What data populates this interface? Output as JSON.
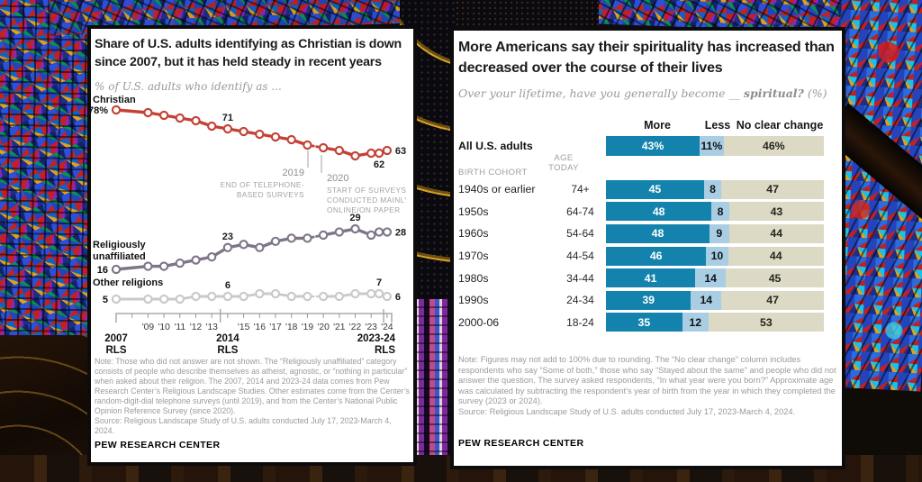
{
  "background": {
    "description": "stained glass cathedral interior photo",
    "accent_colors": {
      "glass_blue": "#2d50d8",
      "glass_red": "#c32026",
      "glass_gold": "#e0a01c",
      "wood_dark": "#1a0f07"
    }
  },
  "chart_data": [
    {
      "type": "line",
      "title": "Share of U.S. adults identifying as Christian is down since 2007, but it has held steady in recent years",
      "subtitle": "% of U.S. adults who identify as ...",
      "x": [
        2007,
        2009,
        2010,
        2011,
        2012,
        2013,
        2014,
        2015,
        2016,
        2017,
        2018,
        2019,
        2020,
        2021,
        2022,
        2023,
        2023.5,
        2024
      ],
      "dashed_between": [
        2019,
        2020
      ],
      "series": [
        {
          "id": "christian",
          "name": "Christian",
          "name_lines": [
            "Christian"
          ],
          "color": "#c44134",
          "values": [
            78,
            77,
            76,
            75,
            74,
            72,
            71,
            70,
            69,
            68,
            67,
            65,
            64,
            63,
            61,
            62,
            62,
            63
          ],
          "start_label": "78%"
        },
        {
          "id": "unaffiliated",
          "name": "Religiously unaffiliated",
          "name_lines": [
            "Religiously",
            "unaffiliated"
          ],
          "color": "#7e7588",
          "values": [
            16,
            17,
            17,
            18,
            19,
            20,
            23,
            24,
            23,
            25,
            26,
            26,
            27,
            28,
            29,
            27,
            28,
            28
          ],
          "start_label": "16"
        },
        {
          "id": "other",
          "name": "Other religions",
          "name_lines": [
            "Other religions"
          ],
          "color": "#c9c9c9",
          "values": [
            5,
            5,
            5,
            5,
            6,
            6,
            6,
            6,
            7,
            7,
            6,
            6,
            6,
            6,
            7,
            7,
            7,
            6
          ],
          "start_label": "5"
        }
      ],
      "point_labels": [
        {
          "series": "christian",
          "x": 2014,
          "text": "71",
          "pos": "above"
        },
        {
          "series": "christian",
          "x": 2023.5,
          "text": "62",
          "pos": "below"
        },
        {
          "series": "christian",
          "x": 2024,
          "text": "63",
          "pos": "right"
        },
        {
          "series": "unaffiliated",
          "x": 2014,
          "text": "23",
          "pos": "above"
        },
        {
          "series": "unaffiliated",
          "x": 2022,
          "text": "29",
          "pos": "above"
        },
        {
          "series": "unaffiliated",
          "x": 2024,
          "text": "28",
          "pos": "right"
        },
        {
          "series": "other",
          "x": 2014,
          "text": "6",
          "pos": "above"
        },
        {
          "series": "other",
          "x": 2023.5,
          "text": "7",
          "pos": "above"
        },
        {
          "series": "other",
          "x": 2024,
          "text": "6",
          "pos": "right"
        }
      ],
      "annotations": [
        {
          "id": "a2019",
          "year": "2019",
          "lines": [
            "END OF TELEPHONE-",
            "BASED SURVEYS"
          ]
        },
        {
          "id": "a2020",
          "year": "2020",
          "lines": [
            "START OF SURVEYS",
            "CONDUCTED MAINLY",
            "ONLINE/ON PAPER"
          ]
        }
      ],
      "x_ticks": [
        {
          "year": 2009,
          "label": "'09"
        },
        {
          "year": 2010,
          "label": "'10"
        },
        {
          "year": 2011,
          "label": "'11"
        },
        {
          "year": 2012,
          "label": "'12"
        },
        {
          "year": 2013,
          "label": "'13"
        },
        {
          "year": 2015,
          "label": "'15"
        },
        {
          "year": 2016,
          "label": "'16"
        },
        {
          "year": 2017,
          "label": "'17"
        },
        {
          "year": 2018,
          "label": "'18"
        },
        {
          "year": 2019,
          "label": "'19"
        },
        {
          "year": 2020,
          "label": "'20"
        },
        {
          "year": 2021,
          "label": "'21"
        },
        {
          "year": 2022,
          "label": "'22"
        },
        {
          "year": 2023,
          "label": "'23"
        },
        {
          "year": 2024,
          "label": "'24"
        }
      ],
      "x_markers": [
        {
          "year": 2007,
          "label": "2007",
          "sub": "RLS",
          "align": "middle"
        },
        {
          "year": 2014,
          "label": "2014",
          "sub": "RLS",
          "align": "middle"
        },
        {
          "year": 2023.7,
          "label": "2023-24",
          "sub": "RLS",
          "align": "end"
        }
      ],
      "note": "Note: Those who did not answer are not shown. The “Religiously unaffiliated” category consists of people who describe themselves as atheist, agnostic, or “nothing in particular” when asked about their religion. The 2007, 2014 and 2023-24 data comes from Pew Research Center’s Religious Landscape Studies. Other estimates come from the Center’s random-digit-dial telephone surveys (until 2019), and from the Center’s National Public Opinion Reference Survey (since 2020).",
      "source": "Source: Religious Landscape Study of U.S. adults conducted July 17, 2023-March 4, 2024.",
      "branding": "PEW RESEARCH CENTER"
    },
    {
      "type": "stacked-bar",
      "title": "More Americans say their spirituality has increased than decreased over the course of their lives",
      "subtitle_prefix": "Over your lifetime, have you generally become __ ",
      "subtitle_emphasis": "spiritual?",
      "subtitle_suffix": " (%)",
      "legend": [
        "More",
        "Less",
        "No clear change"
      ],
      "colors": {
        "more": "#1383ad",
        "less": "#a9cee3",
        "no_clear_change": "#dcd9c5"
      },
      "col_headers": {
        "cohort": "BIRTH COHORT",
        "age": "AGE TODAY"
      },
      "total_row": {
        "label": "All U.S. adults",
        "values": [
          43,
          11,
          46
        ],
        "display": [
          "43%",
          "11%",
          "46%"
        ]
      },
      "rows": [
        {
          "label": "1940s or earlier",
          "age": "74+",
          "values": [
            45,
            8,
            47
          ],
          "display": [
            "45",
            "8",
            "47"
          ]
        },
        {
          "label": "1950s",
          "age": "64-74",
          "values": [
            48,
            8,
            43
          ],
          "display": [
            "48",
            "8",
            "43"
          ]
        },
        {
          "label": "1960s",
          "age": "54-64",
          "values": [
            48,
            9,
            44
          ],
          "display": [
            "48",
            "9",
            "44"
          ]
        },
        {
          "label": "1970s",
          "age": "44-54",
          "values": [
            46,
            10,
            44
          ],
          "display": [
            "46",
            "10",
            "44"
          ]
        },
        {
          "label": "1980s",
          "age": "34-44",
          "values": [
            41,
            14,
            45
          ],
          "display": [
            "41",
            "14",
            "45"
          ]
        },
        {
          "label": "1990s",
          "age": "24-34",
          "values": [
            39,
            14,
            47
          ],
          "display": [
            "39",
            "14",
            "47"
          ]
        },
        {
          "label": "2000-06",
          "age": "18-24",
          "values": [
            35,
            12,
            53
          ],
          "display": [
            "35",
            "12",
            "53"
          ]
        }
      ],
      "note": "Note: Figures may not add to 100% due to rounding. The “No clear change” column includes respondents who say “Some of both,” those who say “Stayed about the same” and people who did not answer the question. The survey asked respondents, “In what year were you born?” Approximate age was calculated by subtracting the respondent’s year of birth from the year in which they completed the survey (2023 or 2024).",
      "source": "Source: Religious Landscape Study of U.S. adults conducted July 17, 2023-March 4, 2024.",
      "branding": "PEW RESEARCH CENTER"
    }
  ]
}
